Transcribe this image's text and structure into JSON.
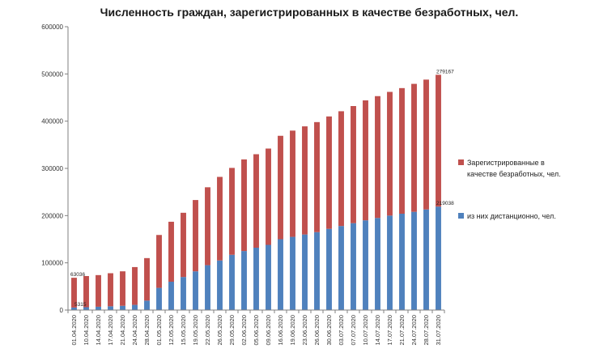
{
  "chart_data": {
    "type": "bar",
    "stacked": true,
    "title": "Численность граждан, зарегистрированных в качестве безработных, чел.",
    "xlabel": "",
    "ylabel": "",
    "ylim": [
      0,
      600000
    ],
    "yticks": [
      0,
      100000,
      200000,
      300000,
      400000,
      500000,
      600000
    ],
    "ytick_labels": [
      "0",
      "100000",
      "200000",
      "300000",
      "400000",
      "500000",
      "600000"
    ],
    "grid": false,
    "legend_position": "right",
    "categories": [
      "01.04.2020",
      "10.04.2020",
      "14.04.2020",
      "17.04.2020",
      "21.04.2020",
      "24.04.2020",
      "28.04.2020",
      "01.05.2020",
      "12.05.2020",
      "15.05.2020",
      "19.05.2020",
      "22.05.2020",
      "26.05.2020",
      "29.05.2020",
      "02.06.2020",
      "05.06.2020",
      "09.06.2020",
      "16.06.2020",
      "19.06.2020",
      "23.06.2020",
      "26.06.2020",
      "30.06.2020",
      "03.07.2020",
      "07.07.2020",
      "10.07.2020",
      "14.07.2020",
      "17.07.2020",
      "21.07.2020",
      "24.07.2020",
      "28.07.2020",
      "31.07.2020"
    ],
    "series": [
      {
        "name": "из них дистанционно, чел.",
        "color": "#4f81bd",
        "values": [
          5315,
          6000,
          7000,
          8000,
          9000,
          11000,
          20000,
          47000,
          60000,
          70000,
          82000,
          95000,
          105000,
          117000,
          125000,
          132000,
          138000,
          150000,
          155000,
          160000,
          165000,
          172000,
          178000,
          184000,
          190000,
          195000,
          200000,
          204000,
          208000,
          213000,
          219038
        ]
      },
      {
        "name": "Зарегистрированные в качестве безработных, чел.",
        "color": "#c0504d",
        "values": [
          63036,
          66000,
          67000,
          70000,
          73000,
          80000,
          90000,
          112000,
          127000,
          136000,
          151000,
          165000,
          177000,
          184000,
          194000,
          198000,
          204000,
          219000,
          225000,
          229000,
          233000,
          238000,
          243000,
          248000,
          254000,
          258000,
          262000,
          266000,
          271000,
          275000,
          279167
        ]
      }
    ],
    "data_labels": [
      {
        "series": 1,
        "index": 0,
        "text": "63036"
      },
      {
        "series": 0,
        "index": 0,
        "text": "5315"
      },
      {
        "series": 1,
        "index": 30,
        "text": "279167"
      },
      {
        "series": 0,
        "index": 30,
        "text": "219038"
      }
    ],
    "legend": [
      {
        "series": 1,
        "lines": [
          "Зарегистрированные в",
          "качестве безработных, чел."
        ]
      },
      {
        "series": 0,
        "lines": [
          "из них дистанционно, чел."
        ]
      }
    ]
  }
}
